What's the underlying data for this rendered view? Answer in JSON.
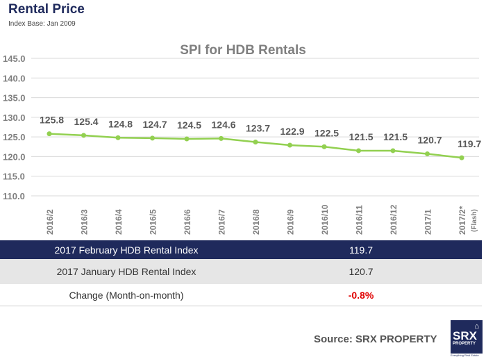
{
  "header": {
    "title": "Rental Price",
    "subtitle": "Index Base: Jan 2009"
  },
  "chart_data": {
    "type": "line",
    "title": "SPI for HDB Rentals",
    "categories": [
      "2016/2",
      "2016/3",
      "2016/4",
      "2016/5",
      "2016/6",
      "2016/7",
      "2016/8",
      "2016/9",
      "2016/10",
      "2016/11",
      "2016/12",
      "2017/1",
      "2017/2*"
    ],
    "category_note": "(Flash)",
    "values": [
      125.8,
      125.4,
      124.8,
      124.7,
      124.5,
      124.6,
      123.7,
      122.9,
      122.5,
      121.5,
      121.5,
      120.7,
      119.7
    ],
    "ylim": [
      110,
      145
    ],
    "yticks": [
      "110.0",
      "115.0",
      "120.0",
      "125.0",
      "130.0",
      "135.0",
      "140.0",
      "145.0"
    ],
    "grid": true,
    "line_color": "#92d050"
  },
  "table": {
    "rows": [
      {
        "label": "2017 February HDB Rental Index",
        "value": "119.7"
      },
      {
        "label": "2017 January HDB Rental Index",
        "value": "120.7"
      },
      {
        "label": "Change (Month-on-month)",
        "value": "-0.8%"
      }
    ]
  },
  "footer": {
    "source": "Source:  SRX PROPERTY",
    "logo_text": "SRX",
    "logo_sub": "PROPERTY",
    "logo_tagline": "Everything Real Estate"
  }
}
